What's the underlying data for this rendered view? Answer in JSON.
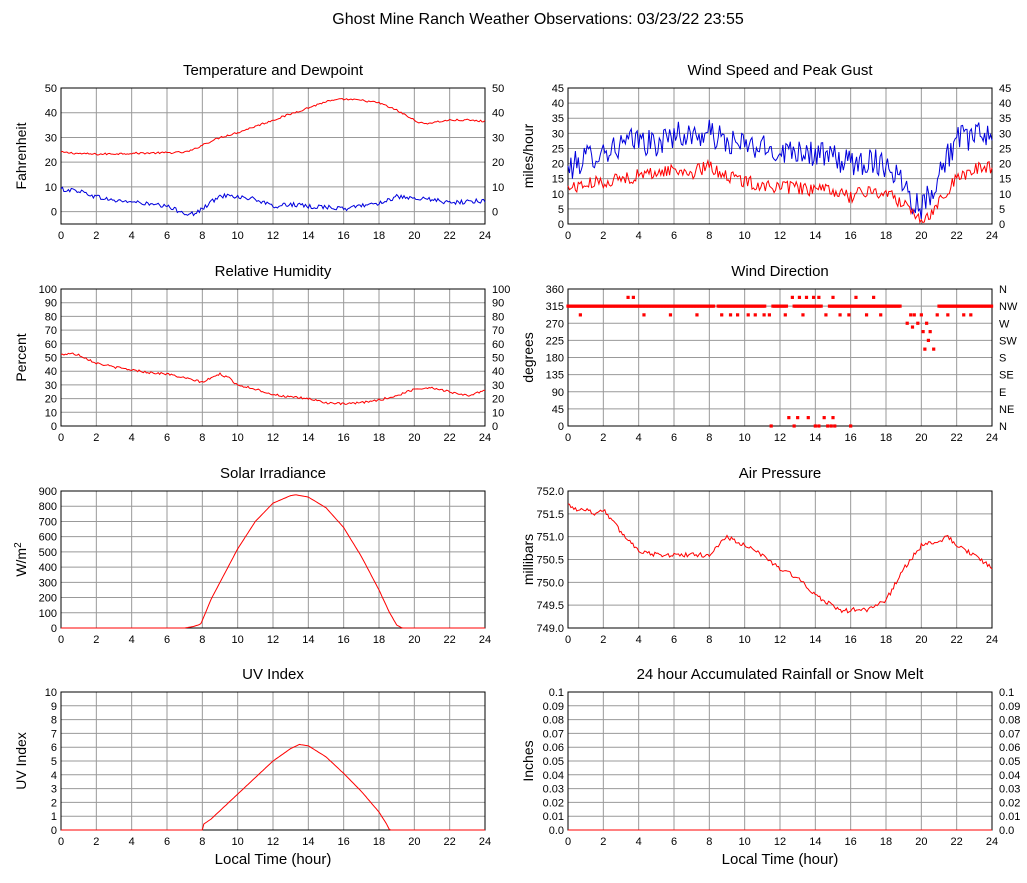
{
  "page_title": "Ghost Mine Ranch Weather Observations: 03/23/22 23:55",
  "x_axis_label": "Local Time (hour)",
  "colors": {
    "red": "#ff0000",
    "blue": "#0000dd",
    "grid": "#999999"
  },
  "chart_data": [
    {
      "id": "temp",
      "type": "line",
      "title": "Temperature and Dewpoint",
      "ylabel": "Fahrenheit",
      "ylim": [
        -5,
        50
      ],
      "yticks": [
        0,
        10,
        20,
        30,
        40,
        50
      ],
      "ytick_labels": [
        "0",
        "10",
        "20",
        "30",
        "40",
        "50"
      ],
      "right_ticks": true,
      "xticks": [
        0,
        2,
        4,
        6,
        8,
        10,
        12,
        14,
        16,
        18,
        20,
        22,
        24
      ],
      "series": [
        {
          "name": "Temperature",
          "color": "#ff0000",
          "x": [
            0,
            1,
            2,
            4,
            6,
            7,
            7.5,
            8,
            8.5,
            9,
            10,
            11,
            12,
            13,
            14,
            15,
            16,
            17,
            18,
            19,
            20,
            20.5,
            21,
            22,
            23,
            24
          ],
          "y": [
            24,
            23.5,
            23.2,
            23.6,
            23.8,
            24,
            25,
            27,
            28.5,
            30,
            32,
            34.5,
            37,
            39.5,
            42,
            44.5,
            45.5,
            45,
            44,
            41,
            37,
            35.5,
            36,
            37,
            37,
            36.5
          ],
          "noise": 0.4
        },
        {
          "name": "Dewpoint",
          "color": "#0000dd",
          "x": [
            0,
            1,
            2,
            3,
            4,
            5,
            6,
            7,
            7.5,
            8,
            8.5,
            9,
            9.5,
            10,
            11,
            12,
            13,
            14,
            15,
            16,
            17,
            18,
            19,
            20,
            21,
            22,
            23,
            24
          ],
          "y": [
            9,
            8.5,
            6,
            4.5,
            4,
            3,
            2,
            -0.5,
            -1,
            1,
            4,
            6,
            7,
            6,
            5,
            2,
            3,
            2,
            2,
            1,
            2.5,
            3.5,
            6,
            5,
            5,
            3.5,
            4,
            4.5
          ],
          "noise": 0.9
        }
      ]
    },
    {
      "id": "wind",
      "type": "line",
      "title": "Wind Speed and Peak Gust",
      "ylabel": "miles/hour",
      "ylim": [
        0,
        45
      ],
      "yticks": [
        0,
        5,
        10,
        15,
        20,
        25,
        30,
        35,
        40,
        45
      ],
      "ytick_labels": [
        "0",
        "5",
        "10",
        "15",
        "20",
        "25",
        "30",
        "35",
        "40",
        "45"
      ],
      "right_ticks": true,
      "xticks": [
        0,
        2,
        4,
        6,
        8,
        10,
        12,
        14,
        16,
        18,
        20,
        22,
        24
      ],
      "series": [
        {
          "name": "Peak Gust",
          "color": "#0000dd",
          "x": [
            0,
            1,
            2,
            3,
            4,
            5,
            6,
            7,
            8,
            9,
            10,
            11,
            12,
            13,
            14,
            15,
            16,
            17,
            18,
            19,
            19.5,
            20,
            20.5,
            21,
            22,
            23,
            24
          ],
          "y": [
            18,
            22,
            24,
            26,
            28,
            26,
            30,
            29,
            30,
            27,
            26,
            25,
            24,
            25,
            23,
            22,
            20,
            21,
            20,
            14,
            8,
            6,
            10,
            17,
            28,
            29,
            30
          ],
          "noise": 4.5
        },
        {
          "name": "Wind Speed",
          "color": "#ff0000",
          "x": [
            0,
            1,
            2,
            3,
            4,
            5,
            6,
            7,
            8,
            9,
            10,
            11,
            12,
            13,
            14,
            15,
            16,
            17,
            18,
            19,
            19.5,
            20,
            20.5,
            21,
            22,
            23,
            24
          ],
          "y": [
            12,
            13,
            14,
            15,
            16,
            17,
            18,
            17,
            19,
            16,
            14,
            13,
            12,
            12,
            11,
            11,
            9,
            11,
            10,
            7,
            4,
            2,
            3,
            8,
            15,
            18,
            19
          ],
          "noise": 2.2
        }
      ]
    },
    {
      "id": "humidity",
      "type": "line",
      "title": "Relative Humidity",
      "ylabel": "Percent",
      "ylim": [
        0,
        100
      ],
      "yticks": [
        0,
        10,
        20,
        30,
        40,
        50,
        60,
        70,
        80,
        90,
        100
      ],
      "ytick_labels": [
        "0",
        "10",
        "20",
        "30",
        "40",
        "50",
        "60",
        "70",
        "80",
        "90",
        "100"
      ],
      "right_ticks": true,
      "xticks": [
        0,
        2,
        4,
        6,
        8,
        10,
        12,
        14,
        16,
        18,
        20,
        22,
        24
      ],
      "series": [
        {
          "name": "Relative Humidity",
          "color": "#ff0000",
          "x": [
            0,
            0.5,
            1,
            2,
            3,
            4,
            5,
            6,
            7,
            8,
            8.5,
            9,
            9.5,
            10,
            11,
            12,
            13,
            14,
            15,
            16,
            17,
            18,
            19,
            20,
            21,
            22,
            23,
            24
          ],
          "y": [
            52,
            53,
            52,
            46,
            43,
            41,
            39,
            38,
            35,
            32,
            35,
            38,
            35,
            30,
            27,
            23,
            21,
            20,
            17,
            16,
            17,
            19,
            22,
            27,
            28,
            25,
            22,
            26
          ],
          "noise": 0.8
        }
      ]
    },
    {
      "id": "winddir",
      "type": "scatter",
      "title": "Wind Direction",
      "ylabel": "degrees",
      "ylim": [
        0,
        360
      ],
      "yticks": [
        0,
        45,
        90,
        135,
        180,
        225,
        270,
        315,
        360
      ],
      "ytick_labels": [
        "0",
        "45",
        "90",
        "135",
        "180",
        "225",
        "270",
        "315",
        "360"
      ],
      "right_labels": [
        "N",
        "NE",
        "E",
        "SE",
        "S",
        "SW",
        "W",
        "NW",
        "N"
      ],
      "xticks": [
        0,
        2,
        4,
        6,
        8,
        10,
        12,
        14,
        16,
        18,
        20,
        22,
        24
      ],
      "series": [
        {
          "name": "Wind Direction",
          "color": "#ff0000",
          "points": [
            [
              0.7,
              292
            ],
            [
              3.4,
              338
            ],
            [
              3.7,
              338
            ],
            [
              4.3,
              292
            ],
            [
              5.8,
              292
            ],
            [
              7.3,
              292
            ],
            [
              8.7,
              292
            ],
            [
              9.2,
              292
            ],
            [
              9.6,
              292
            ],
            [
              10.2,
              292
            ],
            [
              10.6,
              292
            ],
            [
              11.1,
              292
            ],
            [
              11.4,
              292
            ],
            [
              12.3,
              292
            ],
            [
              12.7,
              338
            ],
            [
              13.1,
              338
            ],
            [
              13.3,
              292
            ],
            [
              13.5,
              338
            ],
            [
              13.9,
              338
            ],
            [
              14.2,
              338
            ],
            [
              14.6,
              292
            ],
            [
              15.0,
              338
            ],
            [
              15.4,
              292
            ],
            [
              15.9,
              292
            ],
            [
              16.3,
              338
            ],
            [
              16.9,
              292
            ],
            [
              17.3,
              338
            ],
            [
              17.7,
              292
            ],
            [
              19.2,
              270
            ],
            [
              19.4,
              292
            ],
            [
              19.5,
              260
            ],
            [
              19.6,
              292
            ],
            [
              19.8,
              270
            ],
            [
              20.0,
              292
            ],
            [
              20.1,
              248
            ],
            [
              20.2,
              202
            ],
            [
              20.3,
              270
            ],
            [
              20.4,
              225
            ],
            [
              20.5,
              248
            ],
            [
              20.7,
              202
            ],
            [
              20.9,
              292
            ],
            [
              21.5,
              292
            ],
            [
              22.4,
              292
            ],
            [
              22.8,
              292
            ],
            [
              11.5,
              0
            ],
            [
              12.5,
              22
            ],
            [
              12.8,
              0
            ],
            [
              13.0,
              22
            ],
            [
              13.6,
              22
            ],
            [
              14.0,
              0
            ],
            [
              14.2,
              0
            ],
            [
              14.5,
              22
            ],
            [
              14.7,
              0
            ],
            [
              14.9,
              0
            ],
            [
              15.0,
              22
            ],
            [
              15.1,
              0
            ],
            [
              16.0,
              0
            ]
          ],
          "band": {
            "value": 315,
            "segments": [
              [
                0,
                8.3
              ],
              [
                8.5,
                11.2
              ],
              [
                11.6,
                12.4
              ],
              [
                12.8,
                14.4
              ],
              [
                14.8,
                18.8
              ],
              [
                21.0,
                24
              ]
            ]
          }
        }
      ]
    },
    {
      "id": "solar",
      "type": "line",
      "title": "Solar Irradiance",
      "ylabel": "W/m",
      "ylabel_sup": "2",
      "ylim": [
        0,
        900
      ],
      "yticks": [
        0,
        100,
        200,
        300,
        400,
        500,
        600,
        700,
        800,
        900
      ],
      "ytick_labels": [
        "0",
        "100",
        "200",
        "300",
        "400",
        "500",
        "600",
        "700",
        "800",
        "900"
      ],
      "right_ticks": false,
      "xticks": [
        0,
        2,
        4,
        6,
        8,
        10,
        12,
        14,
        16,
        18,
        20,
        22,
        24
      ],
      "series": [
        {
          "name": "Solar Irradiance",
          "color": "#ff0000",
          "x": [
            0,
            7,
            7.5,
            7.9,
            8.0,
            8.5,
            9,
            10,
            11,
            12,
            13,
            13.3,
            14,
            15,
            16,
            17,
            18,
            18.6,
            19,
            19.3,
            24
          ],
          "y": [
            0,
            0,
            10,
            25,
            50,
            190,
            300,
            520,
            700,
            820,
            870,
            875,
            860,
            790,
            660,
            470,
            250,
            100,
            20,
            0,
            0
          ],
          "noise": 0
        }
      ]
    },
    {
      "id": "pressure",
      "type": "line",
      "title": "Air Pressure",
      "ylabel": "millibars",
      "ylim": [
        749.0,
        752.0
      ],
      "yticks": [
        749.0,
        749.5,
        750.0,
        750.5,
        751.0,
        751.5,
        752.0
      ],
      "ytick_labels": [
        "749.0",
        "749.5",
        "750.0",
        "750.5",
        "751.0",
        "751.5",
        "752.0"
      ],
      "right_ticks": false,
      "xticks": [
        0,
        2,
        4,
        6,
        8,
        10,
        12,
        14,
        16,
        18,
        20,
        22,
        24
      ],
      "series": [
        {
          "name": "Air Pressure",
          "color": "#ff0000",
          "x": [
            0,
            0.5,
            1,
            1.5,
            2,
            3,
            4,
            5,
            6,
            7,
            8,
            8.5,
            9,
            10,
            11,
            12,
            13,
            14,
            15,
            15.5,
            16,
            17,
            18,
            19,
            20,
            21,
            21.5,
            22,
            23,
            24
          ],
          "y": [
            751.7,
            751.6,
            751.6,
            751.5,
            751.6,
            751.1,
            750.7,
            750.6,
            750.6,
            750.6,
            750.6,
            750.8,
            751.0,
            750.8,
            750.6,
            750.3,
            750.1,
            749.7,
            749.5,
            749.35,
            749.4,
            749.4,
            749.6,
            750.3,
            750.8,
            750.9,
            751.0,
            750.8,
            750.6,
            750.3
          ],
          "noise": 0.05
        }
      ]
    },
    {
      "id": "uv",
      "type": "line",
      "title": "UV Index",
      "ylabel": "UV Index",
      "ylim": [
        0,
        10
      ],
      "yticks": [
        0,
        1,
        2,
        3,
        4,
        5,
        6,
        7,
        8,
        9,
        10
      ],
      "ytick_labels": [
        "0",
        "1",
        "2",
        "3",
        "4",
        "5",
        "6",
        "7",
        "8",
        "9",
        "10"
      ],
      "right_ticks": false,
      "xlabel": "Local Time (hour)",
      "xticks": [
        0,
        2,
        4,
        6,
        8,
        10,
        12,
        14,
        16,
        18,
        20,
        22,
        24
      ],
      "series": [
        {
          "name": "UV Index",
          "color": "#ff0000",
          "x": [
            0,
            8.0,
            8.05,
            8.5,
            9,
            10,
            11,
            12,
            13,
            13.5,
            14,
            15,
            16,
            17,
            18,
            18.4,
            18.6,
            24
          ],
          "y": [
            0,
            0,
            0.4,
            0.8,
            1.4,
            2.6,
            3.8,
            5.0,
            5.9,
            6.2,
            6.1,
            5.3,
            4.1,
            2.8,
            1.3,
            0.5,
            0,
            0
          ],
          "noise": 0
        }
      ]
    },
    {
      "id": "rain",
      "type": "line",
      "title": "24 hour Accumulated Rainfall or Snow Melt",
      "ylabel": "Inches",
      "ylim": [
        0,
        0.1
      ],
      "yticks": [
        0,
        0.01,
        0.02,
        0.03,
        0.04,
        0.05,
        0.06,
        0.07,
        0.08,
        0.09,
        0.1
      ],
      "ytick_labels": [
        "0.0",
        "0.01",
        "0.02",
        "0.03",
        "0.04",
        "0.05",
        "0.06",
        "0.07",
        "0.08",
        "0.09",
        "0.1"
      ],
      "right_ticks": true,
      "xlabel": "Local Time (hour)",
      "xticks": [
        0,
        2,
        4,
        6,
        8,
        10,
        12,
        14,
        16,
        18,
        20,
        22,
        24
      ],
      "series": [
        {
          "name": "Accumulated Rainfall",
          "color": "#ff0000",
          "x": [
            0,
            24
          ],
          "y": [
            0,
            0
          ],
          "noise": 0
        }
      ]
    }
  ]
}
